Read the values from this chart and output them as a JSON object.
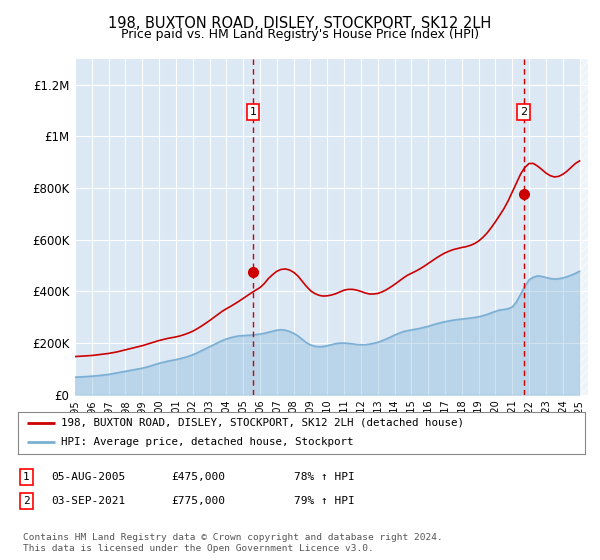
{
  "title": "198, BUXTON ROAD, DISLEY, STOCKPORT, SK12 2LH",
  "subtitle": "Price paid vs. HM Land Registry's House Price Index (HPI)",
  "ylabel_ticks": [
    "£0",
    "£200K",
    "£400K",
    "£600K",
    "£800K",
    "£1M",
    "£1.2M"
  ],
  "ytick_values": [
    0,
    200000,
    400000,
    600000,
    800000,
    1000000,
    1200000
  ],
  "ylim": [
    0,
    1300000
  ],
  "xlim_start": 1995.0,
  "xlim_end": 2025.5,
  "background_color": "#ffffff",
  "plot_bg_color": "#dce9f5",
  "grid_color": "#ffffff",
  "property_color": "#cc0000",
  "hpi_color": "#7bafd4",
  "sale1_year": 2005.58,
  "sale1_price": 475000,
  "sale2_year": 2021.67,
  "sale2_price": 775000,
  "legend_label1": "198, BUXTON ROAD, DISLEY, STOCKPORT, SK12 2LH (detached house)",
  "legend_label2": "HPI: Average price, detached house, Stockport",
  "annotation1_num": "1",
  "annotation1_date": "05-AUG-2005",
  "annotation1_price": "£475,000",
  "annotation1_hpi": "78% ↑ HPI",
  "annotation2_num": "2",
  "annotation2_date": "03-SEP-2021",
  "annotation2_price": "£775,000",
  "annotation2_hpi": "79% ↑ HPI",
  "footer": "Contains HM Land Registry data © Crown copyright and database right 2024.\nThis data is licensed under the Open Government Licence v3.0.",
  "hpi_x": [
    1995.0,
    1995.25,
    1995.5,
    1995.75,
    1996.0,
    1996.25,
    1996.5,
    1996.75,
    1997.0,
    1997.25,
    1997.5,
    1997.75,
    1998.0,
    1998.25,
    1998.5,
    1998.75,
    1999.0,
    1999.25,
    1999.5,
    1999.75,
    2000.0,
    2000.25,
    2000.5,
    2000.75,
    2001.0,
    2001.25,
    2001.5,
    2001.75,
    2002.0,
    2002.25,
    2002.5,
    2002.75,
    2003.0,
    2003.25,
    2003.5,
    2003.75,
    2004.0,
    2004.25,
    2004.5,
    2004.75,
    2005.0,
    2005.25,
    2005.5,
    2005.75,
    2006.0,
    2006.25,
    2006.5,
    2006.75,
    2007.0,
    2007.25,
    2007.5,
    2007.75,
    2008.0,
    2008.25,
    2008.5,
    2008.75,
    2009.0,
    2009.25,
    2009.5,
    2009.75,
    2010.0,
    2010.25,
    2010.5,
    2010.75,
    2011.0,
    2011.25,
    2011.5,
    2011.75,
    2012.0,
    2012.25,
    2012.5,
    2012.75,
    2013.0,
    2013.25,
    2013.5,
    2013.75,
    2014.0,
    2014.25,
    2014.5,
    2014.75,
    2015.0,
    2015.25,
    2015.5,
    2015.75,
    2016.0,
    2016.25,
    2016.5,
    2016.75,
    2017.0,
    2017.25,
    2017.5,
    2017.75,
    2018.0,
    2018.25,
    2018.5,
    2018.75,
    2019.0,
    2019.25,
    2019.5,
    2019.75,
    2020.0,
    2020.25,
    2020.5,
    2020.75,
    2021.0,
    2021.25,
    2021.5,
    2021.75,
    2022.0,
    2022.25,
    2022.5,
    2022.75,
    2023.0,
    2023.25,
    2023.5,
    2023.75,
    2024.0,
    2024.25,
    2024.5,
    2024.75,
    2025.0
  ],
  "hpi_y": [
    68000,
    69000,
    70000,
    71000,
    72000,
    73500,
    75000,
    77000,
    79000,
    82000,
    85000,
    88000,
    91000,
    94000,
    97000,
    100000,
    103000,
    107000,
    112000,
    117000,
    122000,
    126000,
    130000,
    133000,
    136000,
    140000,
    144000,
    149000,
    155000,
    162000,
    170000,
    178000,
    186000,
    194000,
    202000,
    210000,
    216000,
    221000,
    225000,
    228000,
    229000,
    230000,
    231000,
    233000,
    235000,
    238000,
    242000,
    246000,
    250000,
    252000,
    250000,
    245000,
    238000,
    228000,
    215000,
    202000,
    193000,
    188000,
    186000,
    187000,
    190000,
    194000,
    198000,
    200000,
    200000,
    199000,
    197000,
    195000,
    194000,
    194000,
    196000,
    199000,
    203000,
    209000,
    216000,
    223000,
    231000,
    238000,
    244000,
    248000,
    251000,
    254000,
    257000,
    261000,
    265000,
    270000,
    275000,
    279000,
    283000,
    286000,
    289000,
    291000,
    293000,
    295000,
    297000,
    299000,
    302000,
    306000,
    311000,
    317000,
    323000,
    328000,
    330000,
    333000,
    340000,
    360000,
    390000,
    420000,
    445000,
    455000,
    460000,
    458000,
    454000,
    450000,
    448000,
    449000,
    452000,
    457000,
    463000,
    470000,
    478000
  ],
  "prop_x": [
    1995.0,
    1995.25,
    1995.5,
    1995.75,
    1996.0,
    1996.25,
    1996.5,
    1996.75,
    1997.0,
    1997.25,
    1997.5,
    1997.75,
    1998.0,
    1998.25,
    1998.5,
    1998.75,
    1999.0,
    1999.25,
    1999.5,
    1999.75,
    2000.0,
    2000.25,
    2000.5,
    2000.75,
    2001.0,
    2001.25,
    2001.5,
    2001.75,
    2002.0,
    2002.25,
    2002.5,
    2002.75,
    2003.0,
    2003.25,
    2003.5,
    2003.75,
    2004.0,
    2004.25,
    2004.5,
    2004.75,
    2005.0,
    2005.25,
    2005.5,
    2005.75,
    2006.0,
    2006.25,
    2006.5,
    2006.75,
    2007.0,
    2007.25,
    2007.5,
    2007.75,
    2008.0,
    2008.25,
    2008.5,
    2008.75,
    2009.0,
    2009.25,
    2009.5,
    2009.75,
    2010.0,
    2010.25,
    2010.5,
    2010.75,
    2011.0,
    2011.25,
    2011.5,
    2011.75,
    2012.0,
    2012.25,
    2012.5,
    2012.75,
    2013.0,
    2013.25,
    2013.5,
    2013.75,
    2014.0,
    2014.25,
    2014.5,
    2014.75,
    2015.0,
    2015.25,
    2015.5,
    2015.75,
    2016.0,
    2016.25,
    2016.5,
    2016.75,
    2017.0,
    2017.25,
    2017.5,
    2017.75,
    2018.0,
    2018.25,
    2018.5,
    2018.75,
    2019.0,
    2019.25,
    2019.5,
    2019.75,
    2020.0,
    2020.25,
    2020.5,
    2020.75,
    2021.0,
    2021.25,
    2021.5,
    2021.75,
    2022.0,
    2022.25,
    2022.5,
    2022.75,
    2023.0,
    2023.25,
    2023.5,
    2023.75,
    2024.0,
    2024.25,
    2024.5,
    2024.75,
    2025.0
  ],
  "prop_y": [
    148000,
    149000,
    150000,
    151000,
    152000,
    154000,
    156000,
    158000,
    160000,
    163000,
    166000,
    170000,
    174000,
    178000,
    182000,
    186000,
    190000,
    195000,
    200000,
    205000,
    210000,
    214000,
    218000,
    221000,
    224000,
    228000,
    233000,
    239000,
    246000,
    255000,
    265000,
    276000,
    287000,
    299000,
    311000,
    323000,
    333000,
    342000,
    352000,
    362000,
    373000,
    384000,
    395000,
    405000,
    415000,
    430000,
    450000,
    465000,
    478000,
    485000,
    487000,
    483000,
    474000,
    460000,
    440000,
    420000,
    403000,
    392000,
    385000,
    382000,
    383000,
    386000,
    391000,
    398000,
    405000,
    408000,
    408000,
    405000,
    400000,
    394000,
    390000,
    390000,
    392000,
    398000,
    406000,
    416000,
    427000,
    439000,
    451000,
    462000,
    470000,
    478000,
    487000,
    497000,
    508000,
    519000,
    530000,
    540000,
    549000,
    556000,
    562000,
    566000,
    570000,
    573000,
    578000,
    585000,
    595000,
    609000,
    626000,
    647000,
    670000,
    695000,
    720000,
    750000,
    785000,
    820000,
    855000,
    880000,
    895000,
    895000,
    885000,
    872000,
    858000,
    848000,
    843000,
    845000,
    853000,
    865000,
    880000,
    895000,
    905000
  ]
}
